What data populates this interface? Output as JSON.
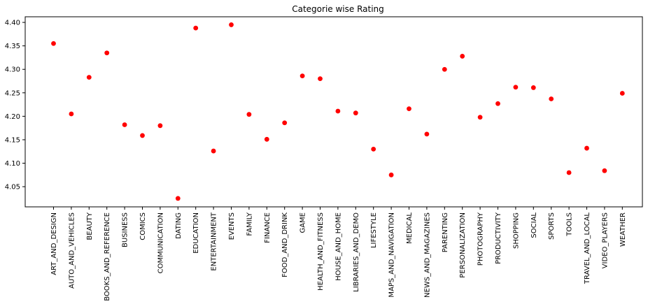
{
  "chart_data": {
    "type": "scatter",
    "title": "Categorie wise Rating",
    "xlabel": "",
    "ylabel": "",
    "categories": [
      "ART_AND_DESIGN",
      "AUTO_AND_VEHICLES",
      "BEAUTY",
      "BOOKS_AND_REFERENCE",
      "BUSINESS",
      "COMICS",
      "COMMUNICATION",
      "DATING",
      "EDUCATION",
      "ENTERTAINMENT",
      "EVENTS",
      "FAMILY",
      "FINANCE",
      "FOOD_AND_DRINK",
      "GAME",
      "HEALTH_AND_FITNESS",
      "HOUSE_AND_HOME",
      "LIBRARIES_AND_DEMO",
      "LIFESTYLE",
      "MAPS_AND_NAVIGATION",
      "MEDICAL",
      "NEWS_AND_MAGAZINES",
      "PARENTING",
      "PERSONALIZATION",
      "PHOTOGRAPHY",
      "PRODUCTIVITY",
      "SHOPPING",
      "SOCIAL",
      "SPORTS",
      "TOOLS",
      "TRAVEL_AND_LOCAL",
      "VIDEO_PLAYERS",
      "WEATHER"
    ],
    "values": [
      4.355,
      4.205,
      4.283,
      4.335,
      4.182,
      4.159,
      4.18,
      4.025,
      4.388,
      4.126,
      4.395,
      4.204,
      4.151,
      4.186,
      4.286,
      4.28,
      4.211,
      4.207,
      4.13,
      4.075,
      4.216,
      4.162,
      4.3,
      4.328,
      4.198,
      4.227,
      4.262,
      4.261,
      4.237,
      4.08,
      4.132,
      4.084,
      4.249
    ],
    "yticks": [
      "4.05",
      "4.10",
      "4.15",
      "4.20",
      "4.25",
      "4.30",
      "4.35",
      "4.40"
    ],
    "ylim": [
      4.007,
      4.412
    ],
    "grid": false,
    "marker_color": "#ff0000"
  }
}
